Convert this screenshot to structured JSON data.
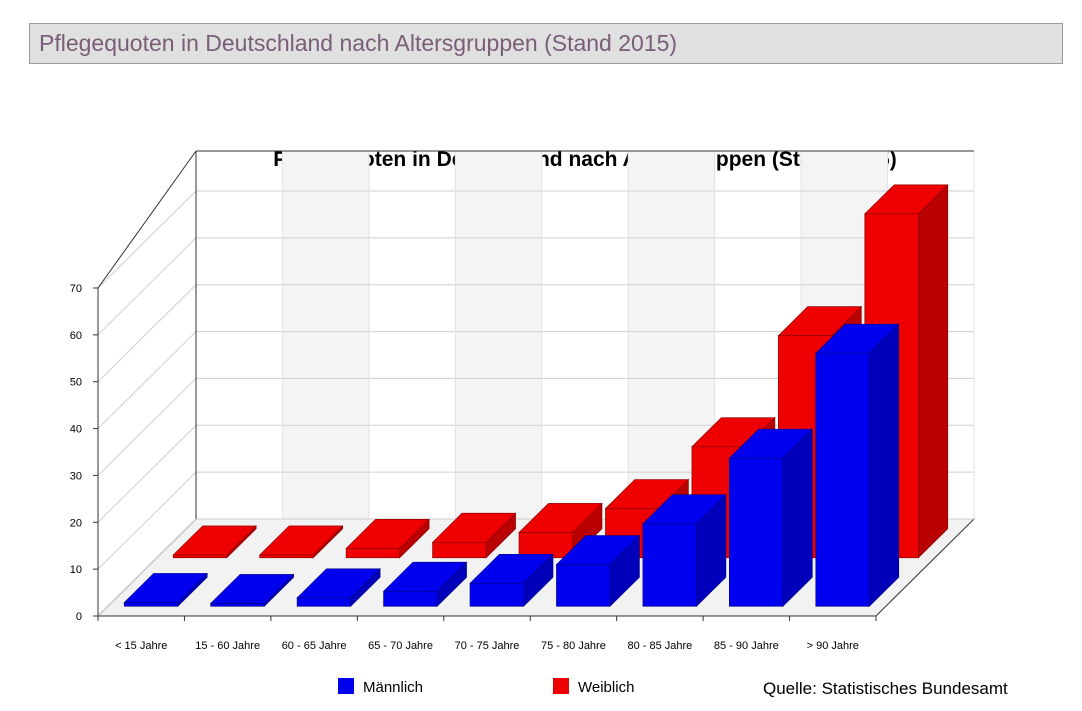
{
  "page": {
    "title": "Pflegequoten in Deutschland nach Altersgruppen (Stand 2015)",
    "source": "Quelle: Statistisches Bundesamt"
  },
  "chart_data": {
    "type": "bar",
    "title": "Pflegequoten in Deutschland nach Altersgruppen (Stand 2015)",
    "xlabel": "",
    "ylabel": "",
    "ylim": [
      0,
      70
    ],
    "yticks": [
      0,
      10,
      20,
      30,
      40,
      50,
      60,
      70
    ],
    "categories": [
      "< 15 Jahre",
      "15 - 60 Jahre",
      "60 - 65 Jahre",
      "65 - 70 Jahre",
      "70 - 75 Jahre",
      "75 - 80 Jahre",
      "80 - 85 Jahre",
      "85 - 90 Jahre",
      "> 90 Jahre"
    ],
    "series": [
      {
        "name": "Männlich",
        "color": "#0000ee",
        "values": [
          0.8,
          0.6,
          1.8,
          3.2,
          4.9,
          8.9,
          17.6,
          31.6,
          54.0
        ]
      },
      {
        "name": "Weiblich",
        "color": "#ee0000",
        "values": [
          0.6,
          0.6,
          2.0,
          3.3,
          5.4,
          10.5,
          23.7,
          47.4,
          73.4
        ]
      }
    ],
    "grid": true,
    "legend": "bottom"
  }
}
